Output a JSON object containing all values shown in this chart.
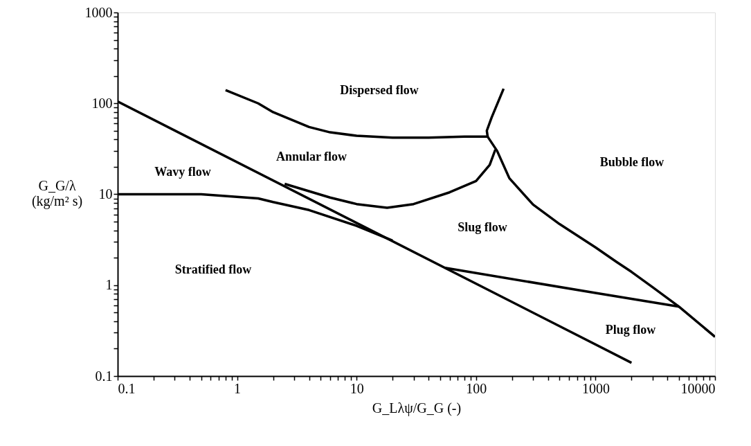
{
  "chart_data": {
    "type": "line",
    "xlabel": "G_Lλψ/G_G (-)",
    "ylabel": "G_G/λ (kg/m² s)",
    "log": "xy",
    "grid": false,
    "marker": "none",
    "line_style": "solid",
    "xlim": [
      0.1,
      10000
    ],
    "ylim": [
      0.1,
      1000
    ],
    "xticks": [
      0.1,
      {
        "value": 0.2,
        "label": null
      },
      {
        "value": 0.3,
        "label": null
      },
      {
        "value": 0.4,
        "label": null
      },
      {
        "value": 0.5,
        "label": null
      },
      {
        "value": 0.6,
        "label": null
      },
      {
        "value": 0.7,
        "label": null
      },
      {
        "value": 0.8,
        "label": null
      },
      {
        "value": 0.9,
        "label": null
      },
      1,
      {
        "value": 2,
        "label": null
      },
      {
        "value": 3,
        "label": null
      },
      {
        "value": 4,
        "label": null
      },
      {
        "value": 5,
        "label": null
      },
      {
        "value": 6,
        "label": null
      },
      {
        "value": 7,
        "label": null
      },
      {
        "value": 8,
        "label": null
      },
      {
        "value": 9,
        "label": null
      },
      10,
      {
        "value": 20,
        "label": null
      },
      {
        "value": 30,
        "label": null
      },
      {
        "value": 40,
        "label": null
      },
      {
        "value": 50,
        "label": null
      },
      {
        "value": 60,
        "label": null
      },
      {
        "value": 70,
        "label": null
      },
      {
        "value": 80,
        "label": null
      },
      {
        "value": 90,
        "label": null
      },
      100,
      {
        "value": 200,
        "label": null
      },
      {
        "value": 300,
        "label": null
      },
      {
        "value": 400,
        "label": null
      },
      {
        "value": 500,
        "label": null
      },
      {
        "value": 600,
        "label": null
      },
      {
        "value": 700,
        "label": null
      },
      {
        "value": 800,
        "label": null
      },
      {
        "value": 900,
        "label": null
      },
      1000,
      {
        "value": 2000,
        "label": null
      },
      {
        "value": 3000,
        "label": null
      },
      {
        "value": 4000,
        "label": null
      },
      {
        "value": 5000,
        "label": null
      },
      {
        "value": 6000,
        "label": null
      },
      {
        "value": 7000,
        "label": null
      },
      {
        "value": 8000,
        "label": null
      },
      {
        "value": 9000,
        "label": null
      },
      10000
    ],
    "yticks": [
      0.1,
      {
        "value": 0.2,
        "label": null
      },
      {
        "value": 0.3,
        "label": null
      },
      {
        "value": 0.4,
        "label": null
      },
      {
        "value": 0.5,
        "label": null
      },
      {
        "value": 0.6,
        "label": null
      },
      {
        "value": 0.7,
        "label": null
      },
      {
        "value": 0.8,
        "label": null
      },
      {
        "value": 0.9,
        "label": null
      },
      1,
      {
        "value": 2,
        "label": null
      },
      {
        "value": 3,
        "label": null
      },
      {
        "value": 4,
        "label": null
      },
      {
        "value": 5,
        "label": null
      },
      {
        "value": 6,
        "label": null
      },
      {
        "value": 7,
        "label": null
      },
      {
        "value": 8,
        "label": null
      },
      {
        "value": 9,
        "label": null
      },
      10,
      {
        "value": 20,
        "label": null
      },
      {
        "value": 30,
        "label": null
      },
      {
        "value": 40,
        "label": null
      },
      {
        "value": 50,
        "label": null
      },
      {
        "value": 60,
        "label": null
      },
      {
        "value": 70,
        "label": null
      },
      {
        "value": 80,
        "label": null
      },
      {
        "value": 90,
        "label": null
      },
      100,
      {
        "value": 200,
        "label": null
      },
      {
        "value": 300,
        "label": null
      },
      {
        "value": 400,
        "label": null
      },
      {
        "value": 500,
        "label": null
      },
      {
        "value": 600,
        "label": null
      },
      {
        "value": 700,
        "label": null
      },
      {
        "value": 800,
        "label": null
      },
      {
        "value": 900,
        "label": null
      },
      1000
    ],
    "series": [
      {
        "color": "#000000",
        "x": [
          0.1,
          2000
        ],
        "values": [
          105,
          0.14
        ]
      },
      {
        "color": "#000000",
        "x": [
          0.1,
          0.5,
          1.5,
          2,
          4,
          10,
          20
        ],
        "values": [
          10,
          10,
          9,
          8.2,
          6.7,
          4.5,
          3.1
        ]
      },
      {
        "color": "#000000",
        "x": [
          2.5,
          6,
          10,
          18,
          30,
          60,
          100,
          130,
          145
        ],
        "values": [
          13,
          9.2,
          7.8,
          7.1,
          7.8,
          10.5,
          14,
          21,
          31
        ]
      },
      {
        "color": "#000000",
        "x": [
          0.8,
          1.5,
          2,
          4,
          6,
          10,
          20,
          40,
          80,
          125,
          123,
          135,
          170
        ],
        "values": [
          140,
          100,
          80,
          55,
          48,
          44,
          42,
          42,
          43,
          43,
          50,
          70,
          145
        ]
      },
      {
        "color": "#000000",
        "x": [
          125,
          150,
          190,
          300,
          500,
          1000,
          1500,
          2000,
          3000,
          5000,
          10000
        ],
        "values": [
          43,
          30,
          15,
          7.7,
          4.7,
          2.6,
          1.8,
          1.4,
          0.95,
          0.58,
          0.27
        ]
      },
      {
        "color": "#000000",
        "x": [
          55,
          1000,
          5000
        ],
        "values": [
          1.55,
          0.82,
          0.58
        ]
      }
    ],
    "annotations": [
      "Dispersed flow",
      "Annular flow",
      "Wavy flow",
      "Bubble flow",
      "Slug flow",
      "Stratified flow",
      "Plug flow"
    ]
  }
}
